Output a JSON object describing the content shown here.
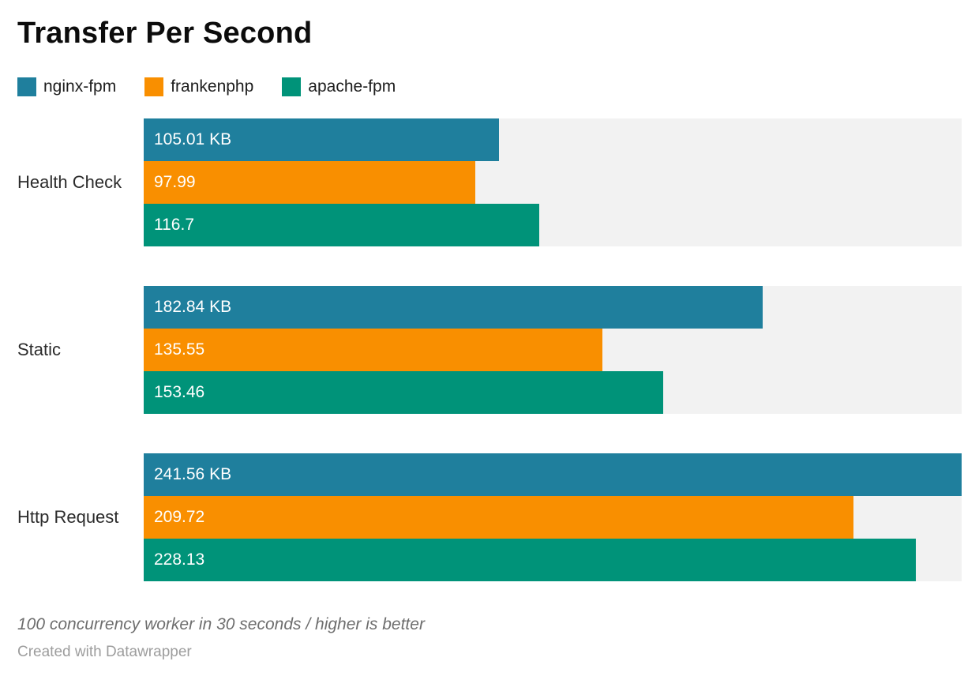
{
  "title": "Transfer Per Second",
  "legend": {
    "items": [
      {
        "label": "nginx-fpm",
        "color": "#1f7f9d"
      },
      {
        "label": "frankenphp",
        "color": "#f98f00"
      },
      {
        "label": "apache-fpm",
        "color": "#009379"
      }
    ]
  },
  "chart_data": {
    "type": "bar",
    "orientation": "horizontal",
    "title": "Transfer Per Second",
    "categories": [
      "Health Check",
      "Static",
      "Http Request"
    ],
    "series": [
      {
        "name": "nginx-fpm",
        "color": "#1f7f9d",
        "values": [
          105.01,
          182.84,
          241.56
        ],
        "labels": [
          "105.01 KB",
          "182.84 KB",
          "241.56 KB"
        ]
      },
      {
        "name": "frankenphp",
        "color": "#f98f00",
        "values": [
          97.99,
          135.55,
          209.72
        ],
        "labels": [
          "97.99",
          "135.55",
          "209.72"
        ]
      },
      {
        "name": "apache-fpm",
        "color": "#009379",
        "values": [
          116.7,
          153.46,
          228.13
        ],
        "labels": [
          "116.7",
          "153.46",
          "228.13"
        ]
      }
    ],
    "xlim": [
      0,
      241.56
    ],
    "unit": "KB",
    "track_color": "#f2f2f2",
    "legend_position": "top",
    "grid": false,
    "value_labels_inside": true
  },
  "footer": {
    "note": "100 concurrency worker in 30 seconds / higher is better",
    "attribution": "Created with Datawrapper"
  }
}
